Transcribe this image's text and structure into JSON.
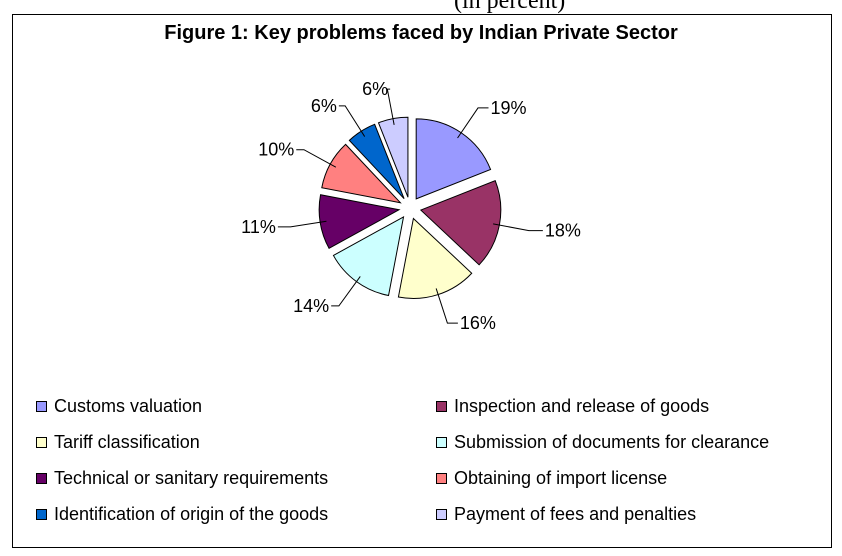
{
  "top_text": "(in percent)",
  "chart_data": {
    "type": "pie",
    "title": "Figure 1: Key problems faced by Indian Private Sector",
    "categories": [
      "Customs valuation",
      "Inspection and release of goods",
      "Tariff classification",
      "Submission of documents for clearance",
      "Technical or sanitary requirements",
      "Obtaining of import license",
      "Identification of origin of the goods",
      "Payment of fees and penalties"
    ],
    "values": [
      19,
      18,
      16,
      14,
      11,
      10,
      6,
      6
    ],
    "data_labels": [
      "19%",
      "18%",
      "16%",
      "14%",
      "11%",
      "10%",
      "6%",
      "6%"
    ],
    "colors": [
      "#9999ff",
      "#993366",
      "#ffffcc",
      "#ccffff",
      "#660066",
      "#ff8080",
      "#0066cc",
      "#ccccff"
    ],
    "exploded": true,
    "legend_position": "bottom"
  }
}
